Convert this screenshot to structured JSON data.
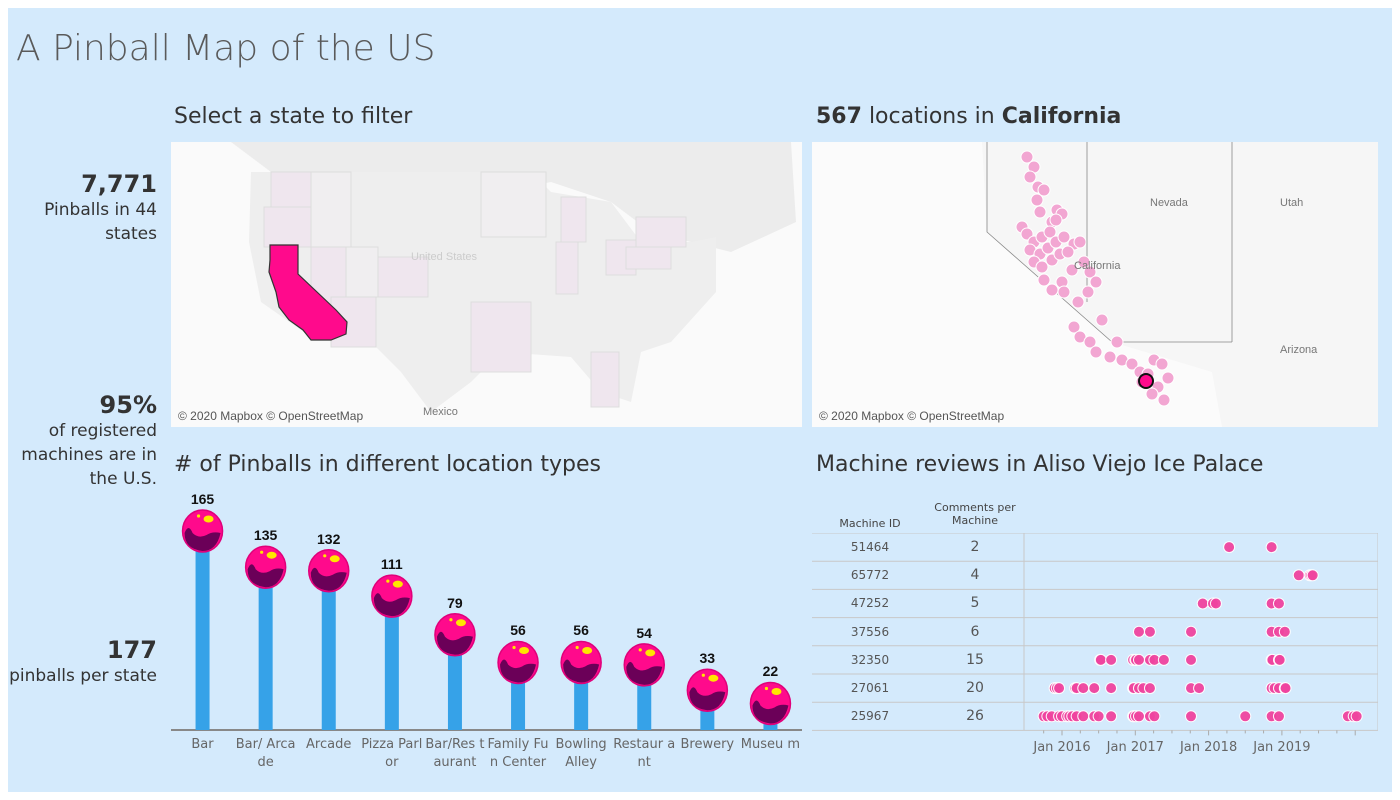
{
  "title": "A Pinball Map of the US",
  "kpis": [
    {
      "value": "7,771",
      "label": "Pinballs in 44 states"
    },
    {
      "value": "95%",
      "label": "of registered machines are in the U.S."
    },
    {
      "value": "177",
      "label": "pinballs per state"
    }
  ],
  "state_map": {
    "title": "Select a state to filter",
    "selected_state": "California",
    "labels": {
      "country": "United States",
      "mexico": "Mexico"
    },
    "credit": "© 2020 Mapbox © OpenStreetMap",
    "colors": {
      "selected": "#ff0a8c",
      "state": "#efe6ee",
      "base": "#f2f2f2"
    }
  },
  "location_map": {
    "count": "567",
    "title_mid": "locations in",
    "state": "California",
    "labels": {
      "nevada": "Nevada",
      "utah": "Utah",
      "california": "California",
      "arizona": "Arizona"
    },
    "credit": "© 2020 Mapbox © OpenStreetMap",
    "dot_color": "#f2a6d2"
  },
  "chart_data": [
    {
      "type": "bar",
      "title": "# of Pinballs in different location types",
      "categories": [
        "Bar",
        "Bar/ Arcade",
        "Arcade",
        "Pizza Parlor",
        "Bar/Res taurant",
        "Family Fun Center",
        "Bowling Alley",
        "Restaur ant",
        "Brewery",
        "Museu m"
      ],
      "values": [
        165,
        135,
        132,
        111,
        79,
        56,
        56,
        54,
        33,
        22
      ],
      "colors": {
        "bar": "#36a2e8",
        "ball": "#ff0a8c",
        "ball_shadow": "#6b0058",
        "highlight": "#ffe600"
      }
    },
    {
      "type": "scatter",
      "title": "Machine reviews in Aliso Viejo Ice Palace",
      "columns": [
        "Machine ID",
        "Comments per Machine"
      ],
      "x_ticks": [
        "Jan 2016",
        "Jan 2017",
        "Jan 2018",
        "Jan 2019"
      ],
      "xlim": [
        2015.5,
        2020.2
      ],
      "dot_color": "#f0449f",
      "rows": [
        {
          "id": "51464",
          "comments": "2",
          "dates": [
            2018.28,
            2018.86
          ]
        },
        {
          "id": "65772",
          "comments": "4",
          "dates": [
            2019.23,
            2019.38,
            2019.4,
            2019.42
          ]
        },
        {
          "id": "47252",
          "comments": "5",
          "dates": [
            2017.92,
            2018.06,
            2018.1,
            2018.86,
            2018.96
          ]
        },
        {
          "id": "37556",
          "comments": "6",
          "dates": [
            2017.05,
            2017.2,
            2017.76,
            2018.86,
            2018.96,
            2019.04
          ]
        },
        {
          "id": "32350",
          "comments": "15",
          "dates": [
            2016.52,
            2016.53,
            2016.67,
            2016.97,
            2017.0,
            2017.01,
            2017.05,
            2017.2,
            2017.26,
            2017.39,
            2017.76,
            2018.86,
            2018.87,
            2018.96,
            2018.97
          ]
        },
        {
          "id": "27061",
          "comments": "20",
          "dates": [
            2015.9,
            2015.93,
            2015.96,
            2016.18,
            2016.2,
            2016.29,
            2016.44,
            2016.67,
            2016.97,
            2016.98,
            2017.05,
            2017.11,
            2017.2,
            2017.76,
            2017.87,
            2018.86,
            2018.9,
            2018.96,
            2019.04,
            2019.05
          ]
        },
        {
          "id": "25967",
          "comments": "26",
          "dates": [
            2015.75,
            2015.8,
            2015.86,
            2015.96,
            2016.0,
            2016.07,
            2016.1,
            2016.14,
            2016.2,
            2016.29,
            2016.44,
            2016.5,
            2016.67,
            2016.97,
            2016.98,
            2017.01,
            2017.05,
            2017.2,
            2017.26,
            2017.76,
            2018.5,
            2018.86,
            2018.96,
            2019.9,
            2019.98,
            2020.02
          ]
        }
      ]
    }
  ]
}
